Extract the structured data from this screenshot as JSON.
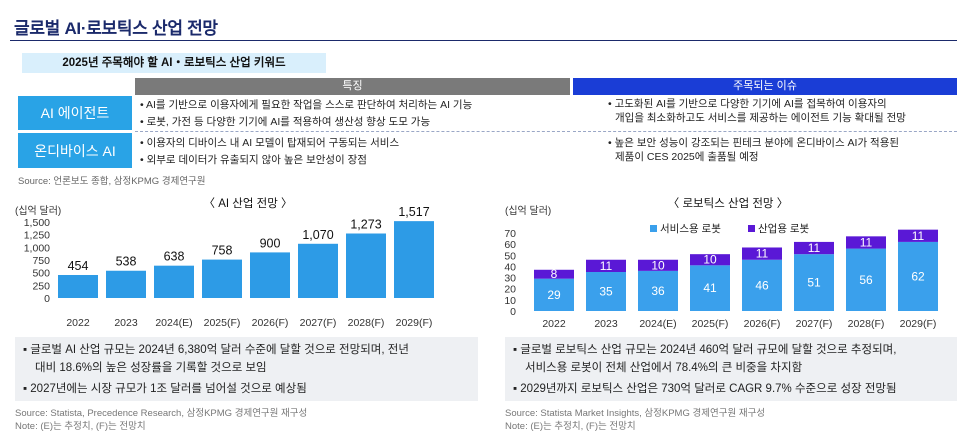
{
  "page": {
    "title": "글로벌 AI·로보틱스 산업 전망",
    "keyword_title": "2025년 주목해야 할 AI・로보틱스 산업 키워드",
    "col_features": "특징",
    "col_issues": "주목되는 이슈",
    "rows": [
      {
        "label": "AI 에이전트",
        "features": [
          "• AI를 기반으로 이용자에게 필요한 작업을 스스로 판단하여 처리하는 AI 기능",
          "• 로봇, 가전 등 다양한 기기에 AI를 적용하여 생산성 향상 도모 가능"
        ],
        "issues": [
          "• 고도화된 AI를 기반으로 다양한 기기에 AI를 접목하여 이용자의",
          "개입을 최소화하고도 서비스를 제공하는 에이전트 기능 확대될 전망"
        ]
      },
      {
        "label": "온디바이스 AI",
        "features": [
          "• 이용자의 디바이스 내 AI 모델이 탑재되어 구동되는 서비스",
          "• 외부로 데이터가 유출되지 않아 높은 보안성이 장점"
        ],
        "issues": [
          "• 높은 보안 성능이 강조되는 핀테크 분야에 온디바이스 AI가 적용된",
          "제품이 CES 2025에 출품될 예정"
        ]
      }
    ],
    "source_top": "Source: 언론보도 종합, 삼정KPMG 경제연구원"
  },
  "ai_panel": {
    "notes": [
      "▪ 글로벌 AI 산업 규모는 2024년 6,380억 달러 수준에 달할 것으로 전망되며, 전년",
      "대비 18.6%의 높은 성장률을 기록할 것으로 보임",
      "▪ 2027년에는 시장 규모가 1조 달러를 넘어설 것으로 예상됨"
    ],
    "source": "Source: Statista, Precedence Research, 삼정KPMG 경제연구원 재구성",
    "note": "Note: (E)는 추정치, (F)는 전망치"
  },
  "robot_panel": {
    "notes": [
      "▪ 글로벌 로보틱스 산업 규모는 2024년 460억 달러 규모에 달할 것으로 추정되며,",
      "서비스용 로봇이 전체 산업에서 78.4%의 큰 비중을 차지함",
      "▪ 2029년까지 로보틱스 산업은 730억 달러로 CAGR 9.7% 수준으로 성장 전망됨"
    ],
    "source": "Source: Statista Market Insights, 삼정KPMG 경제연구원 재구성",
    "note": "Note: (E)는 추정치, (F)는 전망치"
  },
  "colors": {
    "ai_bar": "#2d9be6",
    "service": "#3aa0ec",
    "industrial": "#5a18d6",
    "navy": "#1b2a6b"
  },
  "chart_data": [
    {
      "type": "bar",
      "title": "〈 AI 산업 전망 〉",
      "unit": "(십억 달러)",
      "categories": [
        "2022",
        "2023",
        "2024(E)",
        "2025(F)",
        "2026(F)",
        "2027(F)",
        "2028(F)",
        "2029(F)"
      ],
      "values": [
        454,
        538,
        638,
        758,
        900,
        1070,
        1273,
        1517
      ],
      "value_labels": [
        "454",
        "538",
        "638",
        "758",
        "900",
        "1,070",
        "1,273",
        "1,517"
      ],
      "yticks": [
        "0",
        "250",
        "500",
        "750",
        "1,000",
        "1,250",
        "1,500"
      ],
      "ylim": [
        0,
        1500
      ]
    },
    {
      "type": "bar",
      "stacked": true,
      "title": "〈 로보틱스 산업 전망 〉",
      "unit": "(십억 달러)",
      "categories": [
        "2022",
        "2023",
        "2024(E)",
        "2025(F)",
        "2026(F)",
        "2027(F)",
        "2028(F)",
        "2029(F)"
      ],
      "series": [
        {
          "name": "서비스용 로봇",
          "values": [
            29,
            35,
            36,
            41,
            46,
            51,
            56,
            62
          ]
        },
        {
          "name": "산업용 로봇",
          "values": [
            8,
            11,
            10,
            10,
            11,
            11,
            11,
            11
          ]
        }
      ],
      "yticks": [
        "0",
        "10",
        "20",
        "30",
        "40",
        "50",
        "60",
        "70"
      ],
      "ylim": [
        0,
        70
      ]
    }
  ]
}
